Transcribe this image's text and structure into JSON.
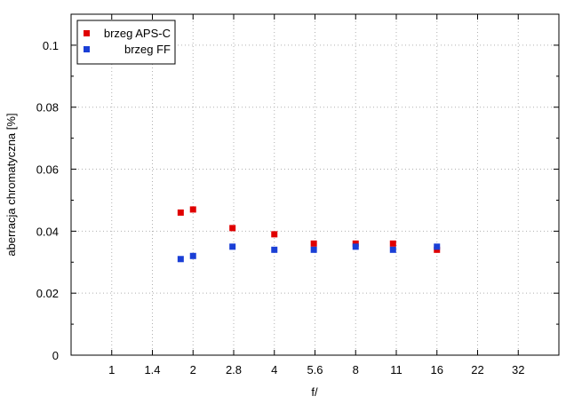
{
  "chart_data": {
    "type": "scatter",
    "xlabel": "f/",
    "ylabel": "aberracja chromatyczna [%]",
    "x_categories": [
      "1",
      "1.4",
      "2",
      "2.8",
      "4",
      "5.6",
      "8",
      "11",
      "16",
      "22",
      "32"
    ],
    "ylim": [
      0,
      0.11
    ],
    "yticks": [
      0,
      0.02,
      0.04,
      0.06,
      0.08,
      0.1
    ],
    "ytick_labels": [
      "0",
      "0.02",
      "0.04",
      "0.06",
      "0.08",
      "0.1"
    ],
    "grid": true,
    "legend_position": "top-left",
    "series": [
      {
        "name": "brzeg APS-C",
        "color": "#e00000",
        "x": [
          1.8,
          2,
          2.8,
          4,
          5.6,
          8,
          11,
          16
        ],
        "y": [
          0.046,
          0.047,
          0.041,
          0.039,
          0.036,
          0.036,
          0.036,
          0.034
        ]
      },
      {
        "name": "brzeg FF",
        "color": "#1a3fd6",
        "x": [
          1.8,
          2,
          2.8,
          4,
          5.6,
          8,
          11,
          16
        ],
        "y": [
          0.031,
          0.032,
          0.035,
          0.034,
          0.034,
          0.035,
          0.034,
          0.035
        ]
      }
    ]
  }
}
